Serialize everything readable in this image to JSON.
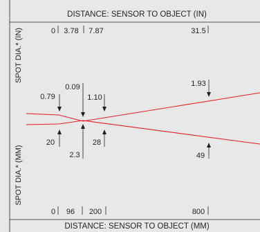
{
  "diagram": {
    "title_top": "DISTANCE: SENSOR TO OBJECT (IN)",
    "title_bottom": "DISTANCE: SENSOR TO OBJECT (MM)",
    "axis_left_top": "SPOT DIA.* (IN)",
    "axis_left_bottom": "SPOT DIA.* (MM)",
    "top_ticks": [
      "0",
      "3.78",
      "7.87",
      "31.5"
    ],
    "bottom_ticks": [
      "0",
      "96",
      "200",
      "800"
    ],
    "spot_in": [
      "0.79",
      "0.09",
      "1.10",
      "1.93"
    ],
    "spot_mm": [
      "20",
      "2.3",
      "28",
      "49"
    ],
    "colors": {
      "background": "#e8e8e8",
      "beam": "#e41e26",
      "ink": "#231f20"
    }
  }
}
